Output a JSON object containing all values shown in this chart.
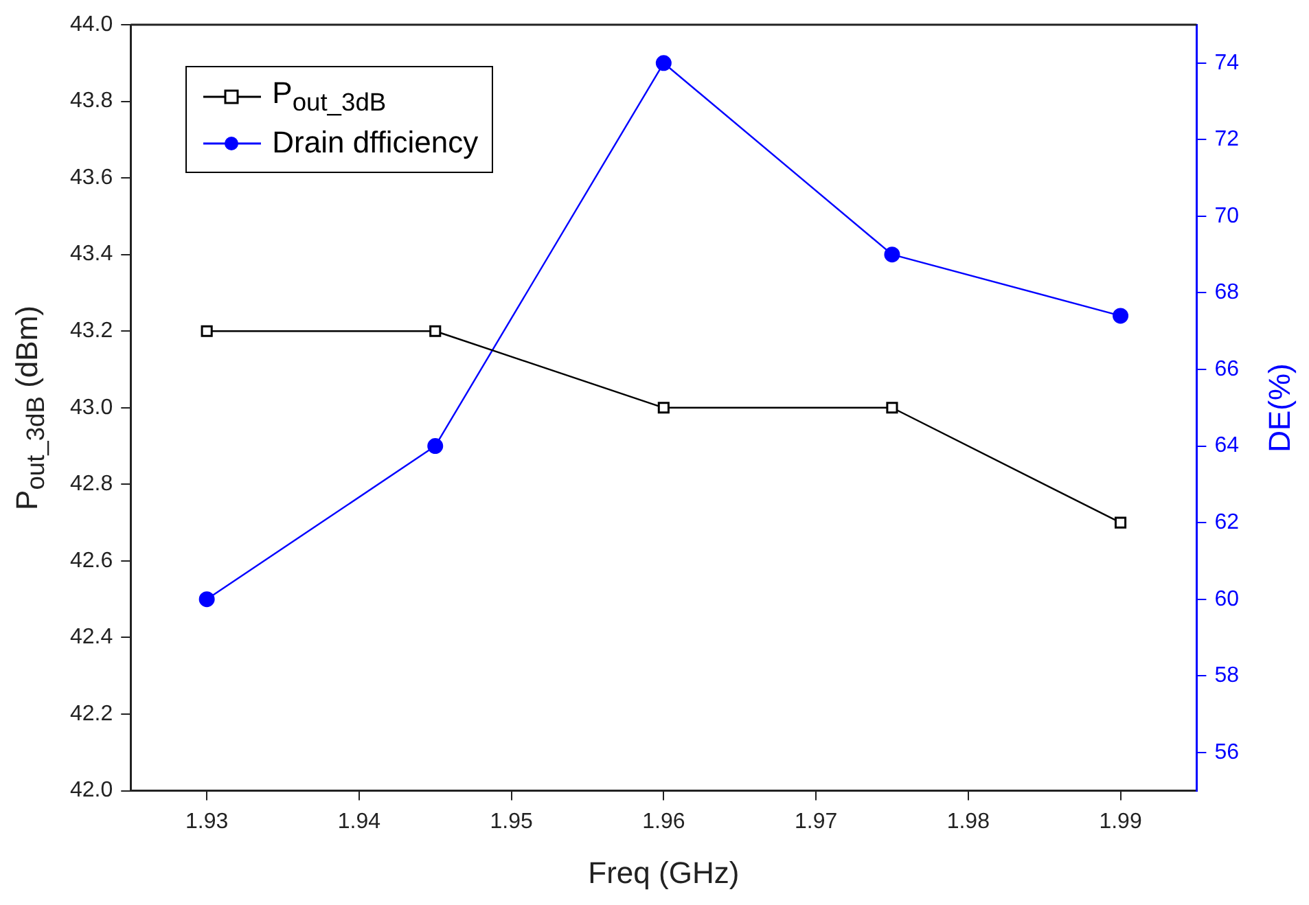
{
  "chart_data": {
    "type": "line",
    "xlabel": "Freq (GHz)",
    "ylabel": "P$_{out_3dB}$ (dBm)",
    "y2label": "DE(%)",
    "x": [
      1.93,
      1.945,
      1.96,
      1.975,
      1.99
    ],
    "xlim": [
      1.925,
      1.995
    ],
    "xticks": [
      1.93,
      1.94,
      1.95,
      1.96,
      1.97,
      1.98,
      1.99
    ],
    "ylim": [
      42.0,
      44.0
    ],
    "yticks": [
      {
        "value": 42,
        "label": "42.0"
      },
      42.2,
      42.4,
      42.6,
      42.8,
      {
        "value": 43,
        "label": "43.0"
      },
      43.2,
      43.4,
      43.6,
      43.8,
      {
        "value": 44,
        "label": "44.0"
      }
    ],
    "y2lim": [
      55,
      75
    ],
    "y2ticks": [
      56,
      58,
      60,
      62,
      64,
      66,
      68,
      70,
      72,
      74
    ],
    "grid": false,
    "legend": "top left",
    "series": [
      {
        "name": "P$_{out_3dB}$",
        "color": "#000000",
        "marker": "square",
        "values": [
          43.2,
          43.2,
          43.0,
          43.0,
          42.7
        ]
      },
      {
        "name": "Drain dfficiency",
        "color": "#0000ff",
        "marker": "circle",
        "axis": "y2",
        "values": [
          60,
          64,
          74,
          69,
          67.4
        ]
      }
    ]
  }
}
